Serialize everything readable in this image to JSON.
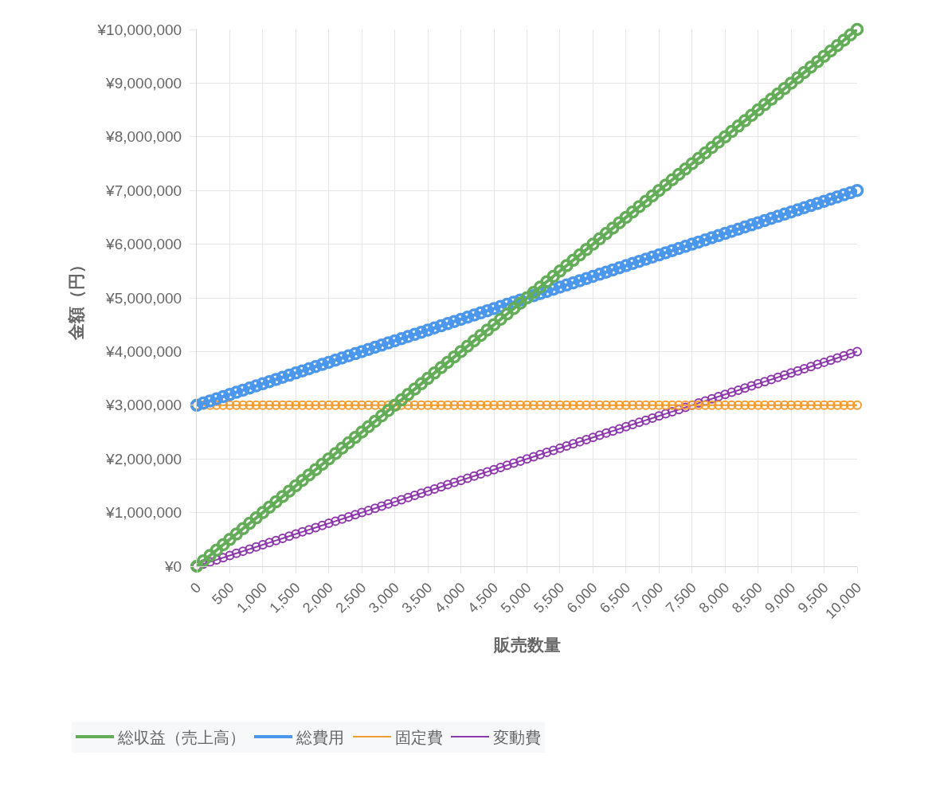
{
  "chart_data": {
    "type": "line",
    "xlabel": "販売数量",
    "ylabel": "金額（円）",
    "grid": true,
    "legend": "bottom",
    "marker": "circle",
    "line_style": "solid",
    "xlim": [
      0,
      10000
    ],
    "ylim": [
      0,
      10000000
    ],
    "xticks": [
      0,
      500,
      {
        "value": 1000,
        "label": "1,000"
      },
      {
        "value": 1500,
        "label": "1,500"
      },
      {
        "value": 2000,
        "label": "2,000"
      },
      {
        "value": 2500,
        "label": "2,500"
      },
      {
        "value": 3000,
        "label": "3,000"
      },
      {
        "value": 3500,
        "label": "3,500"
      },
      {
        "value": 4000,
        "label": "4,000"
      },
      {
        "value": 4500,
        "label": "4,500"
      },
      {
        "value": 5000,
        "label": "5,000"
      },
      {
        "value": 5500,
        "label": "5,500"
      },
      {
        "value": 6000,
        "label": "6,000"
      },
      {
        "value": 6500,
        "label": "6,500"
      },
      {
        "value": 7000,
        "label": "7,000"
      },
      {
        "value": 7500,
        "label": "7,500"
      },
      {
        "value": 8000,
        "label": "8,000"
      },
      {
        "value": 8500,
        "label": "8,500"
      },
      {
        "value": 9000,
        "label": "9,000"
      },
      {
        "value": 9500,
        "label": "9,500"
      },
      {
        "value": 10000,
        "label": "10,000"
      }
    ],
    "yticks": [
      {
        "value": 0,
        "label": "¥0"
      },
      {
        "value": 1000000,
        "label": "¥1,000,000"
      },
      {
        "value": 2000000,
        "label": "¥2,000,000"
      },
      {
        "value": 3000000,
        "label": "¥3,000,000"
      },
      {
        "value": 4000000,
        "label": "¥4,000,000"
      },
      {
        "value": 5000000,
        "label": "¥5,000,000"
      },
      {
        "value": 6000000,
        "label": "¥6,000,000"
      },
      {
        "value": 7000000,
        "label": "¥7,000,000"
      },
      {
        "value": 8000000,
        "label": "¥8,000,000"
      },
      {
        "value": 9000000,
        "label": "¥9,000,000"
      },
      {
        "value": 10000000,
        "label": "¥10,000,000"
      }
    ],
    "x": [
      0,
      100,
      200,
      300,
      400,
      500,
      600,
      700,
      800,
      900,
      1000,
      1100,
      1200,
      1300,
      1400,
      1500,
      1600,
      1700,
      1800,
      1900,
      2000,
      2100,
      2200,
      2300,
      2400,
      2500,
      2600,
      2700,
      2800,
      2900,
      3000,
      3100,
      3200,
      3300,
      3400,
      3500,
      3600,
      3700,
      3800,
      3900,
      4000,
      4100,
      4200,
      4300,
      4400,
      4500,
      4600,
      4700,
      4800,
      4900,
      5000,
      5100,
      5200,
      5300,
      5400,
      5500,
      5600,
      5700,
      5800,
      5900,
      6000,
      6100,
      6200,
      6300,
      6400,
      6500,
      6600,
      6700,
      6800,
      6900,
      7000,
      7100,
      7200,
      7300,
      7400,
      7500,
      7600,
      7700,
      7800,
      7900,
      8000,
      8100,
      8200,
      8300,
      8400,
      8500,
      8600,
      8700,
      8800,
      8900,
      9000,
      9100,
      9200,
      9300,
      9400,
      9500,
      9600,
      9700,
      9800,
      9900,
      10000
    ],
    "series": [
      {
        "name": "総収益（売上高）",
        "color": "#64ad58",
        "values": [
          0,
          100000,
          200000,
          300000,
          400000,
          500000,
          600000,
          700000,
          800000,
          900000,
          1000000,
          1100000,
          1200000,
          1300000,
          1400000,
          1500000,
          1600000,
          1700000,
          1800000,
          1900000,
          2000000,
          2100000,
          2200000,
          2300000,
          2400000,
          2500000,
          2600000,
          2700000,
          2800000,
          2900000,
          3000000,
          3100000,
          3200000,
          3300000,
          3400000,
          3500000,
          3600000,
          3700000,
          3800000,
          3900000,
          4000000,
          4100000,
          4200000,
          4300000,
          4400000,
          4500000,
          4600000,
          4700000,
          4800000,
          4900000,
          5000000,
          5100000,
          5200000,
          5300000,
          5400000,
          5500000,
          5600000,
          5700000,
          5800000,
          5900000,
          6000000,
          6100000,
          6200000,
          6300000,
          6400000,
          6500000,
          6600000,
          6700000,
          6800000,
          6900000,
          7000000,
          7100000,
          7200000,
          7300000,
          7400000,
          7500000,
          7600000,
          7700000,
          7800000,
          7900000,
          8000000,
          8100000,
          8200000,
          8300000,
          8400000,
          8500000,
          8600000,
          8700000,
          8800000,
          8900000,
          9000000,
          9100000,
          9200000,
          9300000,
          9400000,
          9500000,
          9600000,
          9700000,
          9800000,
          9900000,
          10000000
        ]
      },
      {
        "name": "総費用",
        "color": "#4b97ec",
        "values": [
          3000000,
          3040000,
          3080000,
          3120000,
          3160000,
          3200000,
          3240000,
          3280000,
          3320000,
          3360000,
          3400000,
          3440000,
          3480000,
          3520000,
          3560000,
          3600000,
          3640000,
          3680000,
          3720000,
          3760000,
          3800000,
          3840000,
          3880000,
          3920000,
          3960000,
          4000000,
          4040000,
          4080000,
          4120000,
          4160000,
          4200000,
          4240000,
          4280000,
          4320000,
          4360000,
          4400000,
          4440000,
          4480000,
          4520000,
          4560000,
          4600000,
          4640000,
          4680000,
          4720000,
          4760000,
          4800000,
          4840000,
          4880000,
          4920000,
          4960000,
          5000000,
          5040000,
          5080000,
          5120000,
          5160000,
          5200000,
          5240000,
          5280000,
          5320000,
          5360000,
          5400000,
          5440000,
          5480000,
          5520000,
          5560000,
          5600000,
          5640000,
          5680000,
          5720000,
          5760000,
          5800000,
          5840000,
          5880000,
          5920000,
          5960000,
          6000000,
          6040000,
          6080000,
          6120000,
          6160000,
          6200000,
          6240000,
          6280000,
          6320000,
          6360000,
          6400000,
          6440000,
          6480000,
          6520000,
          6560000,
          6600000,
          6640000,
          6680000,
          6720000,
          6760000,
          6800000,
          6840000,
          6880000,
          6920000,
          6960000,
          7000000
        ]
      },
      {
        "name": "固定費",
        "color": "#f39c32",
        "values": [
          3000000,
          3000000,
          3000000,
          3000000,
          3000000,
          3000000,
          3000000,
          3000000,
          3000000,
          3000000,
          3000000,
          3000000,
          3000000,
          3000000,
          3000000,
          3000000,
          3000000,
          3000000,
          3000000,
          3000000,
          3000000,
          3000000,
          3000000,
          3000000,
          3000000,
          3000000,
          3000000,
          3000000,
          3000000,
          3000000,
          3000000,
          3000000,
          3000000,
          3000000,
          3000000,
          3000000,
          3000000,
          3000000,
          3000000,
          3000000,
          3000000,
          3000000,
          3000000,
          3000000,
          3000000,
          3000000,
          3000000,
          3000000,
          3000000,
          3000000,
          3000000,
          3000000,
          3000000,
          3000000,
          3000000,
          3000000,
          3000000,
          3000000,
          3000000,
          3000000,
          3000000,
          3000000,
          3000000,
          3000000,
          3000000,
          3000000,
          3000000,
          3000000,
          3000000,
          3000000,
          3000000,
          3000000,
          3000000,
          3000000,
          3000000,
          3000000,
          3000000,
          3000000,
          3000000,
          3000000,
          3000000,
          3000000,
          3000000,
          3000000,
          3000000,
          3000000,
          3000000,
          3000000,
          3000000,
          3000000,
          3000000,
          3000000,
          3000000,
          3000000,
          3000000,
          3000000,
          3000000,
          3000000,
          3000000,
          3000000,
          3000000
        ]
      },
      {
        "name": "変動費",
        "color": "#8e3aad",
        "values": [
          0,
          40000,
          80000,
          120000,
          160000,
          200000,
          240000,
          280000,
          320000,
          360000,
          400000,
          440000,
          480000,
          520000,
          560000,
          600000,
          640000,
          680000,
          720000,
          760000,
          800000,
          840000,
          880000,
          920000,
          960000,
          1000000,
          1040000,
          1080000,
          1120000,
          1160000,
          1200000,
          1240000,
          1280000,
          1320000,
          1360000,
          1400000,
          1440000,
          1480000,
          1520000,
          1560000,
          1600000,
          1640000,
          1680000,
          1720000,
          1760000,
          1800000,
          1840000,
          1880000,
          1920000,
          1960000,
          2000000,
          2040000,
          2080000,
          2120000,
          2160000,
          2200000,
          2240000,
          2280000,
          2320000,
          2360000,
          2400000,
          2440000,
          2480000,
          2520000,
          2560000,
          2600000,
          2640000,
          2680000,
          2720000,
          2760000,
          2800000,
          2840000,
          2880000,
          2920000,
          2960000,
          3000000,
          3040000,
          3080000,
          3120000,
          3160000,
          3200000,
          3240000,
          3280000,
          3320000,
          3360000,
          3400000,
          3440000,
          3480000,
          3520000,
          3560000,
          3600000,
          3640000,
          3680000,
          3720000,
          3760000,
          3800000,
          3840000,
          3880000,
          3920000,
          3960000,
          4000000
        ]
      }
    ]
  }
}
